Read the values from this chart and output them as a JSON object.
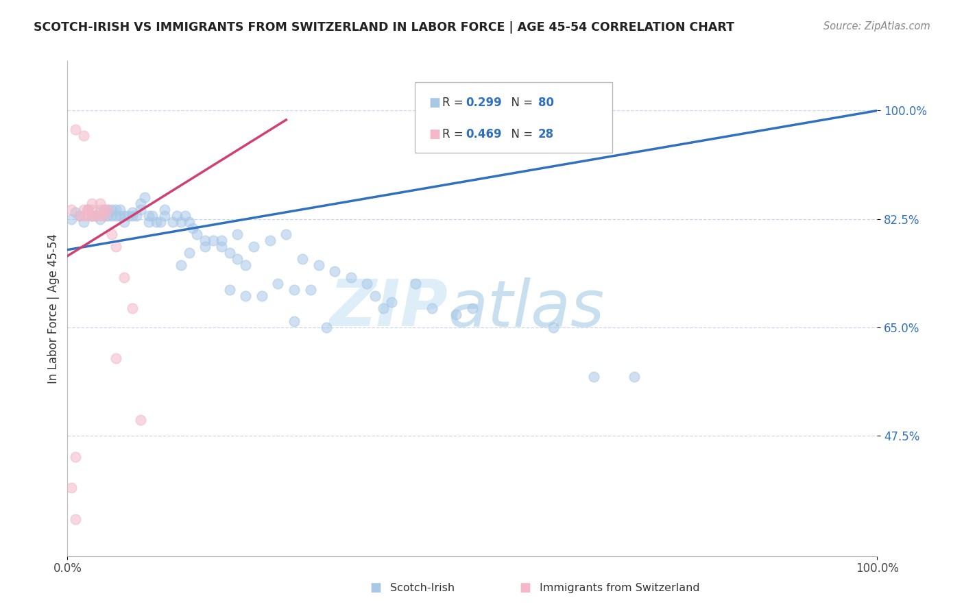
{
  "title": "SCOTCH-IRISH VS IMMIGRANTS FROM SWITZERLAND IN LABOR FORCE | AGE 45-54 CORRELATION CHART",
  "source": "Source: ZipAtlas.com",
  "ylabel": "In Labor Force | Age 45-54",
  "yticks_labels": [
    "47.5%",
    "65.0%",
    "82.5%",
    "100.0%"
  ],
  "ytick_vals": [
    0.475,
    0.65,
    0.825,
    1.0
  ],
  "xrange": [
    0.0,
    1.0
  ],
  "yrange": [
    0.28,
    1.08
  ],
  "legend_label1": "Scotch-Irish",
  "legend_label2": "Immigrants from Switzerland",
  "R1": "0.299",
  "N1": "80",
  "R2": "0.469",
  "N2": "28",
  "scatter_color1": "#a8c8e8",
  "scatter_color2": "#f4b8c8",
  "line_color1": "#3070c0",
  "line_color2": "#d04070",
  "blue_line_x0": 0.0,
  "blue_line_y0": 0.775,
  "blue_line_x1": 1.0,
  "blue_line_y1": 1.0,
  "pink_line_x0": 0.0,
  "pink_line_y0": 0.765,
  "pink_line_x1": 0.27,
  "pink_line_y1": 0.985,
  "blue_x": [
    0.005,
    0.01,
    0.015,
    0.02,
    0.025,
    0.03,
    0.03,
    0.035,
    0.04,
    0.04,
    0.045,
    0.045,
    0.05,
    0.05,
    0.055,
    0.055,
    0.06,
    0.06,
    0.065,
    0.065,
    0.07,
    0.07,
    0.075,
    0.08,
    0.08,
    0.085,
    0.09,
    0.09,
    0.095,
    0.1,
    0.1,
    0.105,
    0.11,
    0.115,
    0.12,
    0.12,
    0.13,
    0.135,
    0.14,
    0.145,
    0.15,
    0.155,
    0.16,
    0.17,
    0.18,
    0.19,
    0.2,
    0.21,
    0.22,
    0.14,
    0.15,
    0.17,
    0.19,
    0.21,
    0.23,
    0.25,
    0.27,
    0.29,
    0.31,
    0.33,
    0.35,
    0.37,
    0.39,
    0.38,
    0.3,
    0.28,
    0.26,
    0.24,
    0.22,
    0.2,
    0.48,
    0.45,
    0.4,
    0.32,
    0.28,
    0.43,
    0.5,
    0.6,
    0.65,
    0.7
  ],
  "blue_y": [
    0.825,
    0.835,
    0.83,
    0.82,
    0.84,
    0.83,
    0.83,
    0.83,
    0.835,
    0.825,
    0.84,
    0.83,
    0.84,
    0.83,
    0.84,
    0.83,
    0.84,
    0.83,
    0.84,
    0.83,
    0.83,
    0.82,
    0.83,
    0.835,
    0.83,
    0.83,
    0.85,
    0.84,
    0.86,
    0.82,
    0.83,
    0.83,
    0.82,
    0.82,
    0.84,
    0.83,
    0.82,
    0.83,
    0.82,
    0.83,
    0.82,
    0.81,
    0.8,
    0.79,
    0.79,
    0.78,
    0.77,
    0.76,
    0.75,
    0.75,
    0.77,
    0.78,
    0.79,
    0.8,
    0.78,
    0.79,
    0.8,
    0.76,
    0.75,
    0.74,
    0.73,
    0.72,
    0.68,
    0.7,
    0.71,
    0.71,
    0.72,
    0.7,
    0.7,
    0.71,
    0.67,
    0.68,
    0.69,
    0.65,
    0.66,
    0.72,
    0.68,
    0.65,
    0.57,
    0.57
  ],
  "pink_x": [
    0.005,
    0.01,
    0.015,
    0.02,
    0.02,
    0.025,
    0.025,
    0.03,
    0.03,
    0.035,
    0.04,
    0.04,
    0.04,
    0.045,
    0.045,
    0.05,
    0.055,
    0.06,
    0.07,
    0.08,
    0.02,
    0.025,
    0.03,
    0.06,
    0.09,
    0.01,
    0.005,
    0.01
  ],
  "pink_y": [
    0.84,
    0.97,
    0.83,
    0.96,
    0.84,
    0.84,
    0.83,
    0.85,
    0.84,
    0.83,
    0.85,
    0.84,
    0.83,
    0.84,
    0.83,
    0.84,
    0.8,
    0.78,
    0.73,
    0.68,
    0.83,
    0.84,
    0.83,
    0.6,
    0.5,
    0.44,
    0.39,
    0.34
  ]
}
